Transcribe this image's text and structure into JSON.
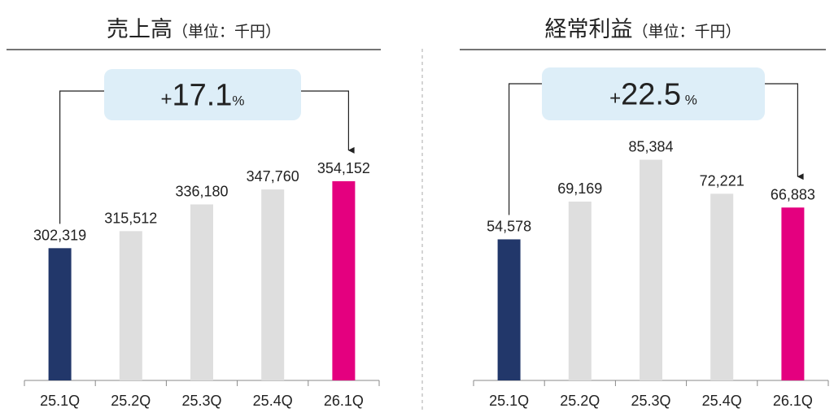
{
  "chart_data": [
    {
      "type": "bar",
      "title": "売上高",
      "unit": "（単位：千円）",
      "annotation": {
        "prefix": "+",
        "value": "17.1",
        "suffix": "%"
      },
      "categories": [
        "25.1Q",
        "25.2Q",
        "25.3Q",
        "25.4Q",
        "26.1Q"
      ],
      "values": [
        302319,
        315512,
        336180,
        347760,
        354152
      ],
      "value_labels": [
        "302,319",
        "315,512",
        "336,180",
        "347,760",
        "354,152"
      ],
      "colors": [
        "#22376a",
        "#dedede",
        "#dedede",
        "#dedede",
        "#e4007f"
      ],
      "ylim": [
        200000,
        400000
      ]
    },
    {
      "type": "bar",
      "title": "経常利益",
      "unit": "（単位：千円）",
      "annotation": {
        "prefix": "+",
        "value": "22.5",
        "suffix": " %"
      },
      "categories": [
        "25.1Q",
        "25.2Q",
        "25.3Q",
        "25.4Q",
        "26.1Q"
      ],
      "values": [
        54578,
        69169,
        85384,
        72221,
        66883
      ],
      "value_labels": [
        "54,578",
        "69,169",
        "85,384",
        "72,221",
        "66,883"
      ],
      "colors": [
        "#22376a",
        "#dedede",
        "#dedede",
        "#dedede",
        "#e4007f"
      ],
      "ylim": [
        0,
        100000
      ]
    }
  ]
}
